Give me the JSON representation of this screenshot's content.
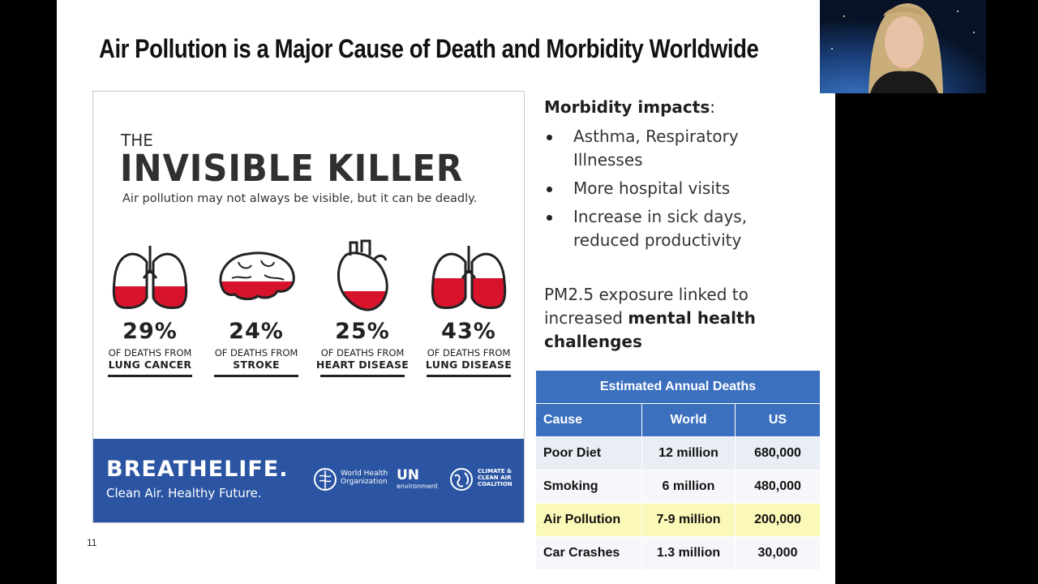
{
  "slide": {
    "title": "Air Pollution is a Major Cause of Death and Morbidity Worldwide",
    "number": "11"
  },
  "infographic": {
    "the": "THE",
    "title": "INVISIBLE KILLER",
    "subtitle": "Air pollution may not always be visible, but it can be deadly.",
    "accent_color": "#d7142b",
    "stats": [
      {
        "icon": "lungs-icon",
        "percent": "29%",
        "fill": 0.29,
        "label": "OF DEATHS FROM",
        "cause": "LUNG CANCER"
      },
      {
        "icon": "brain-icon",
        "percent": "24%",
        "fill": 0.24,
        "label": "OF DEATHS FROM",
        "cause": "STROKE"
      },
      {
        "icon": "heart-icon",
        "percent": "25%",
        "fill": 0.25,
        "label": "OF DEATHS FROM",
        "cause": "HEART DISEASE"
      },
      {
        "icon": "lungs-icon",
        "percent": "43%",
        "fill": 0.43,
        "label": "OF DEATHS FROM",
        "cause": "LUNG DISEASE"
      }
    ],
    "footer": {
      "brand_a": "BREATHE",
      "brand_b": "LIFE.",
      "tagline": "Clean Air. Healthy Future.",
      "who_line1": "World Health",
      "who_line2": "Organization",
      "un_line1": "UN",
      "un_line2": "environment",
      "ccac_line1": "CLIMATE &",
      "ccac_line2": "CLEAN AIR",
      "ccac_line3": "COALITION",
      "bg_color": "#2b55a3"
    }
  },
  "morbidity": {
    "title_bold": "Morbidity impacts",
    "title_rest": ":",
    "bullets": [
      "Asthma, Respiratory Illnesses",
      "More hospital visits",
      "Increase in sick days, reduced productivity"
    ]
  },
  "pm": {
    "text_a": "PM2.5 exposure linked to increased ",
    "text_bold": "mental health challenges"
  },
  "deaths_table": {
    "caption": "Estimated Annual Deaths",
    "headers": [
      "Cause",
      "World",
      "US"
    ],
    "rows": [
      {
        "cause": "Poor Diet",
        "world": "12 million",
        "us": "680,000"
      },
      {
        "cause": "Smoking",
        "world": "6 million",
        "us": "480,000"
      },
      {
        "cause": "Air Pollution",
        "world": "7-9 million",
        "us": "200,000"
      },
      {
        "cause": "Car Crashes",
        "world": "1.3 million",
        "us": "30,000"
      }
    ],
    "highlight_color": "#fbf9b7",
    "header_color": "#3b70bf"
  },
  "webcam": {
    "label": "Presenter"
  }
}
